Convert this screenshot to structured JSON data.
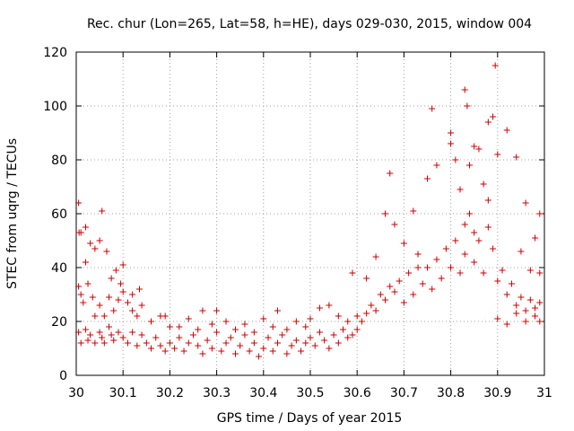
{
  "chart_data": {
    "type": "scatter",
    "title": "Rec. chur (Lon=265, Lat=58, h=HE), days 029-030, 2015, window 004",
    "xlabel": "GPS time / Days of year 2015",
    "ylabel": "STEC from uqrg / TECUs",
    "xlim": [
      30,
      31
    ],
    "ylim": [
      0,
      120
    ],
    "grid": true,
    "marker": "+",
    "color": "#cc0000",
    "x_ticks": [
      "30",
      "30.1",
      "30.2",
      "30.3",
      "30.4",
      "30.5",
      "30.6",
      "30.7",
      "30.8",
      "30.9",
      "31"
    ],
    "y_ticks": [
      "0",
      "20",
      "40",
      "60",
      "80",
      "100",
      "120"
    ],
    "series": [
      {
        "name": "STEC",
        "points": [
          [
            30.005,
            64
          ],
          [
            30.006,
            53
          ],
          [
            30.01,
            53
          ],
          [
            30.02,
            55
          ],
          [
            30.02,
            42
          ],
          [
            30.03,
            49
          ],
          [
            30.04,
            47
          ],
          [
            30.05,
            50
          ],
          [
            30.055,
            61
          ],
          [
            30.065,
            46
          ],
          [
            30.075,
            36
          ],
          [
            30.085,
            39
          ],
          [
            30.095,
            34
          ],
          [
            30.1,
            41
          ],
          [
            30.12,
            30
          ],
          [
            30.135,
            32
          ],
          [
            30.005,
            33
          ],
          [
            30.01,
            30
          ],
          [
            30.015,
            27
          ],
          [
            30.025,
            34
          ],
          [
            30.035,
            29
          ],
          [
            30.04,
            22
          ],
          [
            30.05,
            26
          ],
          [
            30.06,
            22
          ],
          [
            30.07,
            29
          ],
          [
            30.08,
            24
          ],
          [
            30.09,
            28
          ],
          [
            30.1,
            31
          ],
          [
            30.11,
            27
          ],
          [
            30.12,
            24
          ],
          [
            30.13,
            22
          ],
          [
            30.14,
            26
          ],
          [
            30.16,
            20
          ],
          [
            30.18,
            22
          ],
          [
            30.19,
            22
          ],
          [
            30.2,
            18
          ],
          [
            30.005,
            16
          ],
          [
            30.01,
            12
          ],
          [
            30.02,
            17
          ],
          [
            30.025,
            13
          ],
          [
            30.03,
            15
          ],
          [
            30.04,
            12
          ],
          [
            30.05,
            16
          ],
          [
            30.055,
            14
          ],
          [
            30.06,
            12
          ],
          [
            30.07,
            18
          ],
          [
            30.075,
            15
          ],
          [
            30.08,
            13
          ],
          [
            30.09,
            16
          ],
          [
            30.1,
            14
          ],
          [
            30.11,
            12
          ],
          [
            30.12,
            16
          ],
          [
            30.13,
            11
          ],
          [
            30.14,
            15
          ],
          [
            30.15,
            12
          ],
          [
            30.16,
            10
          ],
          [
            30.17,
            14
          ],
          [
            30.18,
            11
          ],
          [
            30.19,
            9
          ],
          [
            30.2,
            12
          ],
          [
            30.21,
            10
          ],
          [
            30.22,
            14
          ],
          [
            30.23,
            9
          ],
          [
            30.24,
            12
          ],
          [
            30.25,
            15
          ],
          [
            30.26,
            11
          ],
          [
            30.27,
            8
          ],
          [
            30.28,
            13
          ],
          [
            30.29,
            10
          ],
          [
            30.3,
            16
          ],
          [
            30.31,
            9
          ],
          [
            30.32,
            12
          ],
          [
            30.33,
            14
          ],
          [
            30.34,
            8
          ],
          [
            30.35,
            11
          ],
          [
            30.36,
            15
          ],
          [
            30.37,
            9
          ],
          [
            30.38,
            12
          ],
          [
            30.39,
            7
          ],
          [
            30.4,
            10
          ],
          [
            30.41,
            14
          ],
          [
            30.42,
            9
          ],
          [
            30.43,
            12
          ],
          [
            30.44,
            15
          ],
          [
            30.45,
            8
          ],
          [
            30.46,
            11
          ],
          [
            30.47,
            13
          ],
          [
            30.48,
            9
          ],
          [
            30.49,
            12
          ],
          [
            30.22,
            18
          ],
          [
            30.24,
            21
          ],
          [
            30.26,
            17
          ],
          [
            30.27,
            24
          ],
          [
            30.29,
            19
          ],
          [
            30.3,
            24
          ],
          [
            30.32,
            20
          ],
          [
            30.34,
            17
          ],
          [
            30.36,
            19
          ],
          [
            30.38,
            16
          ],
          [
            30.4,
            21
          ],
          [
            30.42,
            18
          ],
          [
            30.43,
            24
          ],
          [
            30.45,
            17
          ],
          [
            30.47,
            20
          ],
          [
            30.49,
            18
          ],
          [
            30.5,
            14
          ],
          [
            30.51,
            11
          ],
          [
            30.52,
            16
          ],
          [
            30.53,
            13
          ],
          [
            30.54,
            10
          ],
          [
            30.55,
            15
          ],
          [
            30.56,
            12
          ],
          [
            30.57,
            17
          ],
          [
            30.58,
            14
          ],
          [
            30.59,
            15
          ],
          [
            30.6,
            17
          ],
          [
            30.5,
            21
          ],
          [
            30.52,
            25
          ],
          [
            30.54,
            26
          ],
          [
            30.56,
            22
          ],
          [
            30.58,
            20
          ],
          [
            30.59,
            38
          ],
          [
            30.6,
            22
          ],
          [
            30.61,
            20
          ],
          [
            30.62,
            23
          ],
          [
            30.63,
            26
          ],
          [
            30.64,
            24
          ],
          [
            30.65,
            30
          ],
          [
            30.66,
            28
          ],
          [
            30.67,
            33
          ],
          [
            30.68,
            31
          ],
          [
            30.69,
            35
          ],
          [
            30.62,
            36
          ],
          [
            30.64,
            44
          ],
          [
            30.66,
            60
          ],
          [
            30.67,
            75
          ],
          [
            30.68,
            56
          ],
          [
            30.7,
            49
          ],
          [
            30.72,
            61
          ],
          [
            30.73,
            40
          ],
          [
            30.75,
            73
          ],
          [
            30.76,
            99
          ],
          [
            30.77,
            78
          ],
          [
            30.7,
            27
          ],
          [
            30.72,
            30
          ],
          [
            30.74,
            34
          ],
          [
            30.76,
            32
          ],
          [
            30.78,
            36
          ],
          [
            30.8,
            40
          ],
          [
            30.82,
            38
          ],
          [
            30.71,
            38
          ],
          [
            30.73,
            45
          ],
          [
            30.75,
            40
          ],
          [
            30.77,
            43
          ],
          [
            30.79,
            47
          ],
          [
            30.81,
            50
          ],
          [
            30.83,
            56
          ],
          [
            30.85,
            53
          ],
          [
            30.8,
            90
          ],
          [
            30.8,
            86
          ],
          [
            30.81,
            80
          ],
          [
            30.82,
            69
          ],
          [
            30.83,
            106
          ],
          [
            30.835,
            100
          ],
          [
            30.84,
            78
          ],
          [
            30.85,
            85
          ],
          [
            30.86,
            84
          ],
          [
            30.87,
            71
          ],
          [
            30.88,
            65
          ],
          [
            30.88,
            94
          ],
          [
            30.89,
            96
          ],
          [
            30.895,
            115
          ],
          [
            30.9,
            82
          ],
          [
            30.92,
            91
          ],
          [
            30.94,
            81
          ],
          [
            30.83,
            45
          ],
          [
            30.84,
            60
          ],
          [
            30.85,
            42
          ],
          [
            30.86,
            50
          ],
          [
            30.87,
            38
          ],
          [
            30.88,
            55
          ],
          [
            30.89,
            47
          ],
          [
            30.9,
            35
          ],
          [
            30.91,
            39
          ],
          [
            30.92,
            30
          ],
          [
            30.93,
            34
          ],
          [
            30.94,
            26
          ],
          [
            30.95,
            29
          ],
          [
            30.96,
            24
          ],
          [
            30.97,
            28
          ],
          [
            30.98,
            22
          ],
          [
            30.99,
            27
          ],
          [
            30.9,
            21
          ],
          [
            30.92,
            19
          ],
          [
            30.94,
            23
          ],
          [
            30.96,
            20
          ],
          [
            30.98,
            25
          ],
          [
            30.99,
            20
          ],
          [
            30.95,
            46
          ],
          [
            30.96,
            64
          ],
          [
            30.98,
            51
          ],
          [
            30.99,
            60
          ],
          [
            30.97,
            39
          ],
          [
            30.99,
            38
          ]
        ]
      }
    ]
  }
}
